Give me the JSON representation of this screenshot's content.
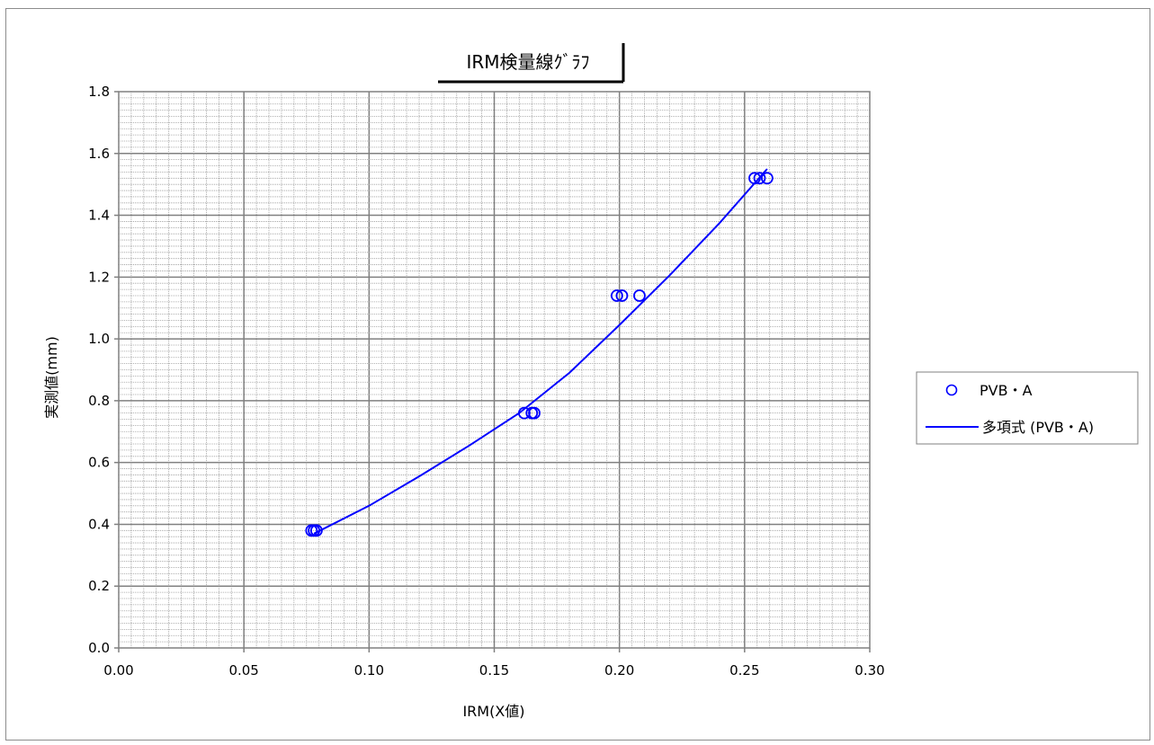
{
  "chart_data": {
    "type": "scatter",
    "title": "IRM検量線ｸﾞﾗﾌ",
    "xlabel": "IRM(X値)",
    "ylabel": "実測値(mm)",
    "xlim": [
      0.0,
      0.3
    ],
    "ylim": [
      0.0,
      1.8
    ],
    "x_ticks": [
      "0.00",
      "0.05",
      "0.10",
      "0.15",
      "0.20",
      "0.25",
      "0.30"
    ],
    "y_ticks": [
      "0.0",
      "0.2",
      "0.4",
      "0.6",
      "0.8",
      "1.0",
      "1.2",
      "1.4",
      "1.6",
      "1.8"
    ],
    "x_tick_values": [
      0.0,
      0.05,
      0.1,
      0.15,
      0.2,
      0.25,
      0.3
    ],
    "y_tick_values": [
      0.0,
      0.2,
      0.4,
      0.6,
      0.8,
      1.0,
      1.2,
      1.4,
      1.6,
      1.8
    ],
    "grid": true,
    "legend_position": "right",
    "series": [
      {
        "name": "PVB・A",
        "kind": "scatter",
        "color": "#0000ff",
        "points": [
          {
            "x": 0.077,
            "y": 0.38
          },
          {
            "x": 0.078,
            "y": 0.38
          },
          {
            "x": 0.079,
            "y": 0.38
          },
          {
            "x": 0.162,
            "y": 0.76
          },
          {
            "x": 0.165,
            "y": 0.76
          },
          {
            "x": 0.166,
            "y": 0.76
          },
          {
            "x": 0.199,
            "y": 1.14
          },
          {
            "x": 0.201,
            "y": 1.14
          },
          {
            "x": 0.208,
            "y": 1.14
          },
          {
            "x": 0.254,
            "y": 1.52
          },
          {
            "x": 0.256,
            "y": 1.52
          },
          {
            "x": 0.259,
            "y": 1.52
          }
        ]
      },
      {
        "name": "多項式 (PVB・A)",
        "kind": "trendline",
        "color": "#0000ff",
        "points": [
          {
            "x": 0.078,
            "y": 0.37
          },
          {
            "x": 0.1,
            "y": 0.46
          },
          {
            "x": 0.12,
            "y": 0.555
          },
          {
            "x": 0.14,
            "y": 0.655
          },
          {
            "x": 0.16,
            "y": 0.76
          },
          {
            "x": 0.18,
            "y": 0.89
          },
          {
            "x": 0.2,
            "y": 1.045
          },
          {
            "x": 0.22,
            "y": 1.205
          },
          {
            "x": 0.24,
            "y": 1.375
          },
          {
            "x": 0.259,
            "y": 1.55
          }
        ]
      }
    ]
  }
}
